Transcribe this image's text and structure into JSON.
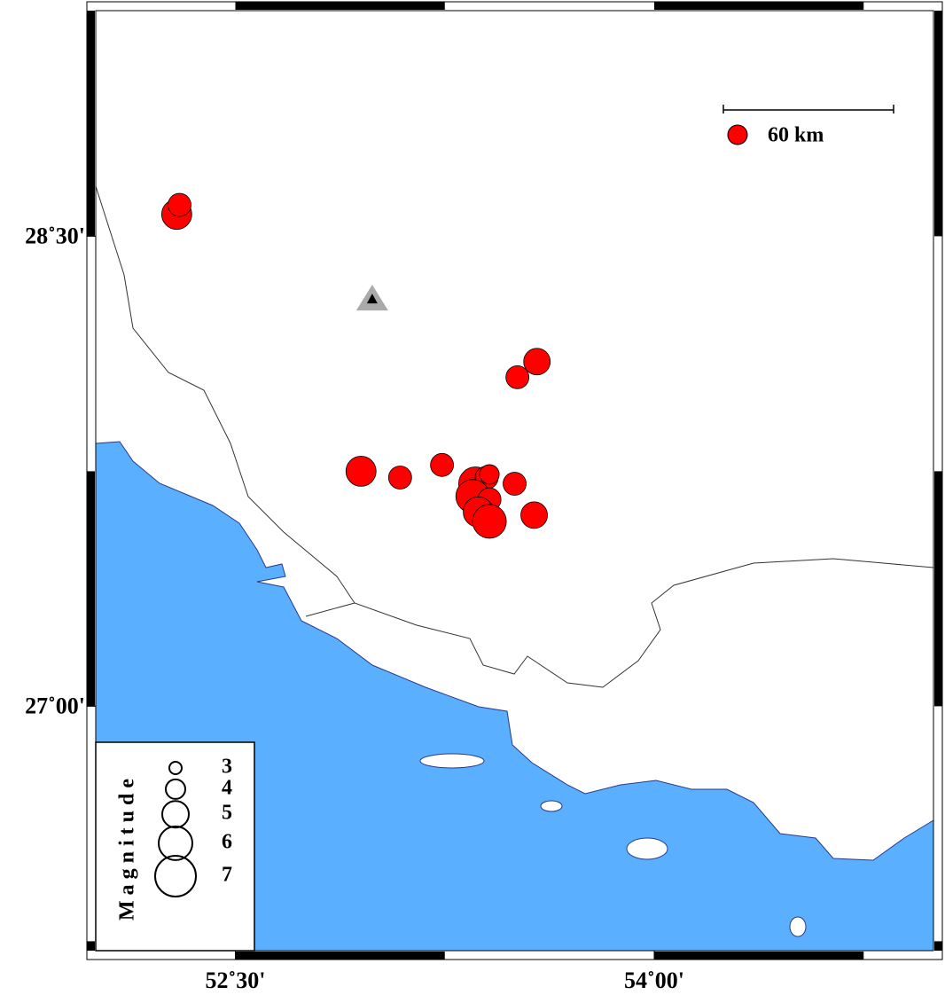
{
  "map": {
    "lon_range": [
      52,
      55
    ],
    "lat_range": [
      26.22,
      29.22
    ],
    "xticks": [
      {
        "value": 52.5,
        "label": "52˚30'"
      },
      {
        "value": 54,
        "label": "54˚00'"
      }
    ],
    "yticks": [
      {
        "value": 28.5,
        "label": "28˚30'"
      },
      {
        "value": 27,
        "label": "27˚00'"
      }
    ],
    "scale_label": "60 km",
    "station": {
      "lon": 52.99,
      "lat": 28.3
    },
    "events": [
      {
        "lon": 52.29,
        "lat": 28.57,
        "mag": 5.5
      },
      {
        "lon": 52.3,
        "lat": 28.6,
        "mag": 4.5
      },
      {
        "lon": 53.58,
        "lat": 28.1,
        "mag": 5
      },
      {
        "lon": 53.51,
        "lat": 28.05,
        "mag": 4.5
      },
      {
        "lon": 52.95,
        "lat": 27.75,
        "mag": 5.5
      },
      {
        "lon": 53.09,
        "lat": 27.73,
        "mag": 4.5
      },
      {
        "lon": 53.24,
        "lat": 27.77,
        "mag": 4.5
      },
      {
        "lon": 53.36,
        "lat": 27.71,
        "mag": 6
      },
      {
        "lon": 53.4,
        "lat": 27.73,
        "mag": 4.5
      },
      {
        "lon": 53.41,
        "lat": 27.74,
        "mag": 4
      },
      {
        "lon": 53.35,
        "lat": 27.67,
        "mag": 6
      },
      {
        "lon": 53.5,
        "lat": 27.71,
        "mag": 4.5
      },
      {
        "lon": 53.41,
        "lat": 27.66,
        "mag": 4.5
      },
      {
        "lon": 53.37,
        "lat": 27.62,
        "mag": 5.5
      },
      {
        "lon": 53.41,
        "lat": 27.59,
        "mag": 6
      },
      {
        "lon": 53.57,
        "lat": 27.61,
        "mag": 5
      }
    ],
    "legend": {
      "title": "Magnitude",
      "magnitudes": [
        3,
        4,
        5,
        6,
        7
      ]
    }
  }
}
